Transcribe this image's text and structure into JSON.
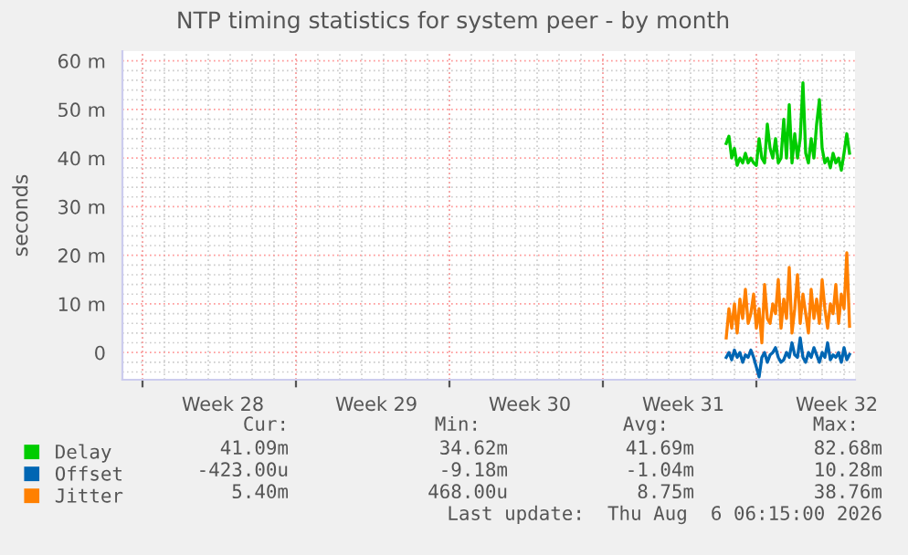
{
  "chart_data": {
    "type": "line",
    "title": "NTP timing statistics for system peer - by month",
    "ylabel": "seconds",
    "x": [
      "2026-07-31T15:00",
      "2026-07-31T18:00",
      "2026-07-31T21:00",
      "2026-08-01T00:00",
      "2026-08-01T03:00",
      "2026-08-01T06:00",
      "2026-08-01T09:00",
      "2026-08-01T12:00",
      "2026-08-01T15:00",
      "2026-08-01T18:00",
      "2026-08-01T21:00",
      "2026-08-02T00:00",
      "2026-08-02T03:00",
      "2026-08-02T06:00",
      "2026-08-02T09:00",
      "2026-08-02T12:00",
      "2026-08-02T15:00",
      "2026-08-02T18:00",
      "2026-08-02T21:00",
      "2026-08-03T00:00",
      "2026-08-03T03:00",
      "2026-08-03T06:00",
      "2026-08-03T09:00",
      "2026-08-03T12:00",
      "2026-08-03T15:00",
      "2026-08-03T18:00",
      "2026-08-03T21:00",
      "2026-08-04T00:00",
      "2026-08-04T03:00",
      "2026-08-04T06:00",
      "2026-08-04T09:00",
      "2026-08-04T12:00",
      "2026-08-04T15:00",
      "2026-08-04T18:00",
      "2026-08-04T21:00",
      "2026-08-05T00:00",
      "2026-08-05T03:00",
      "2026-08-05T06:00",
      "2026-08-05T09:00",
      "2026-08-05T12:00",
      "2026-08-05T15:00",
      "2026-08-05T18:00",
      "2026-08-05T21:00",
      "2026-08-06T00:00",
      "2026-08-06T03:00",
      "2026-08-06T06:00"
    ],
    "series": [
      {
        "name": "Delay",
        "color": "#00cc00",
        "values": [
          43,
          44.5,
          40,
          42,
          38.5,
          40,
          39,
          41,
          39,
          40,
          39,
          38.5,
          44,
          40,
          39,
          47,
          42,
          40,
          44,
          39,
          40,
          48,
          40,
          51,
          39,
          45,
          40,
          44,
          55.5,
          41,
          39,
          44,
          40,
          47,
          52,
          42,
          39,
          40,
          38,
          41,
          39,
          40,
          37.5,
          41,
          45,
          41
        ]
      },
      {
        "name": "Offset",
        "color": "#0066b3",
        "values": [
          -1,
          0,
          -1.5,
          0.5,
          -1,
          0,
          -2,
          -0.5,
          -1,
          0.5,
          -1,
          -3,
          -5,
          -1,
          0,
          -2,
          -0.5,
          0,
          1,
          -1,
          -2,
          -1.5,
          0,
          -1,
          2,
          -0.5,
          -1,
          3,
          -1,
          -2,
          0,
          -1,
          1,
          -0.5,
          -2,
          0,
          -1,
          2,
          -1.5,
          -0.5,
          -1,
          0,
          -2,
          1,
          -1.5,
          -0.4
        ]
      },
      {
        "name": "Jitter",
        "color": "#ff8000",
        "values": [
          3,
          9,
          5,
          10,
          4,
          11,
          7,
          13,
          6,
          8,
          12,
          5,
          9,
          2,
          14,
          7,
          6,
          10,
          8,
          15,
          5,
          11,
          7,
          17.5,
          4,
          9,
          16,
          6,
          12,
          8,
          4,
          13,
          7,
          11,
          6,
          15,
          9,
          5,
          10,
          8,
          14,
          6,
          12,
          9,
          20.5,
          5.4
        ]
      }
    ],
    "xlim": [
      "2026-07-04T02:00",
      "2026-08-06T12:00"
    ],
    "xticks": [
      {
        "value": "2026-07-05T00:00",
        "label": null
      },
      {
        "value": "2026-07-12T00:00",
        "label": null
      },
      {
        "value": "2026-07-19T00:00",
        "label": null
      },
      {
        "value": "2026-07-26T00:00",
        "label": null
      },
      {
        "value": "2026-08-02T00:00",
        "label": null
      },
      {
        "value": "2026-07-08T16:00",
        "label": "Week 28"
      },
      {
        "value": "2026-07-15T16:00",
        "label": "Week 29"
      },
      {
        "value": "2026-07-22T16:00",
        "label": "Week 30"
      },
      {
        "value": "2026-07-29T16:00",
        "label": "Week 31"
      },
      {
        "value": "2026-08-05T16:00",
        "label": "Week 32"
      }
    ],
    "ylim": [
      -5.6,
      62
    ],
    "yticks": [
      {
        "value": 0,
        "label": "0"
      },
      {
        "value": 10,
        "label": "10 m"
      },
      {
        "value": 20,
        "label": "20 m"
      },
      {
        "value": 30,
        "label": "30 m"
      },
      {
        "value": 40,
        "label": "40 m"
      },
      {
        "value": 50,
        "label": "50 m"
      },
      {
        "value": 60,
        "label": "60 m"
      },
      {
        "value": -4,
        "label": null
      },
      {
        "value": -2,
        "label": null
      },
      {
        "value": 2,
        "label": null
      },
      {
        "value": 4,
        "label": null
      },
      {
        "value": 6,
        "label": null
      },
      {
        "value": 8,
        "label": null
      },
      {
        "value": 12,
        "label": null
      },
      {
        "value": 14,
        "label": null
      },
      {
        "value": 16,
        "label": null
      },
      {
        "value": 18,
        "label": null
      },
      {
        "value": 22,
        "label": null
      },
      {
        "value": 24,
        "label": null
      },
      {
        "value": 26,
        "label": null
      },
      {
        "value": 28,
        "label": null
      },
      {
        "value": 32,
        "label": null
      },
      {
        "value": 34,
        "label": null
      },
      {
        "value": 36,
        "label": null
      },
      {
        "value": 38,
        "label": null
      },
      {
        "value": 42,
        "label": null
      },
      {
        "value": 44,
        "label": null
      },
      {
        "value": 46,
        "label": null
      },
      {
        "value": 48,
        "label": null
      },
      {
        "value": 52,
        "label": null
      },
      {
        "value": 54,
        "label": null
      },
      {
        "value": 56,
        "label": null
      },
      {
        "value": 58,
        "label": null
      }
    ],
    "grid": true,
    "legend": "bottom",
    "marker": "none",
    "line_style": "solid",
    "annotations": [
      "Cur:",
      "Min:",
      "Avg:",
      "Max:",
      "41.09m",
      "34.62m",
      "41.69m",
      "82.68m",
      "-423.00u",
      "-9.18m",
      "-1.04m",
      "10.28m",
      "5.40m",
      "468.00u",
      "8.75m",
      "38.76m",
      "Last update:  Thu Aug  6 06:15:00 2026"
    ]
  }
}
